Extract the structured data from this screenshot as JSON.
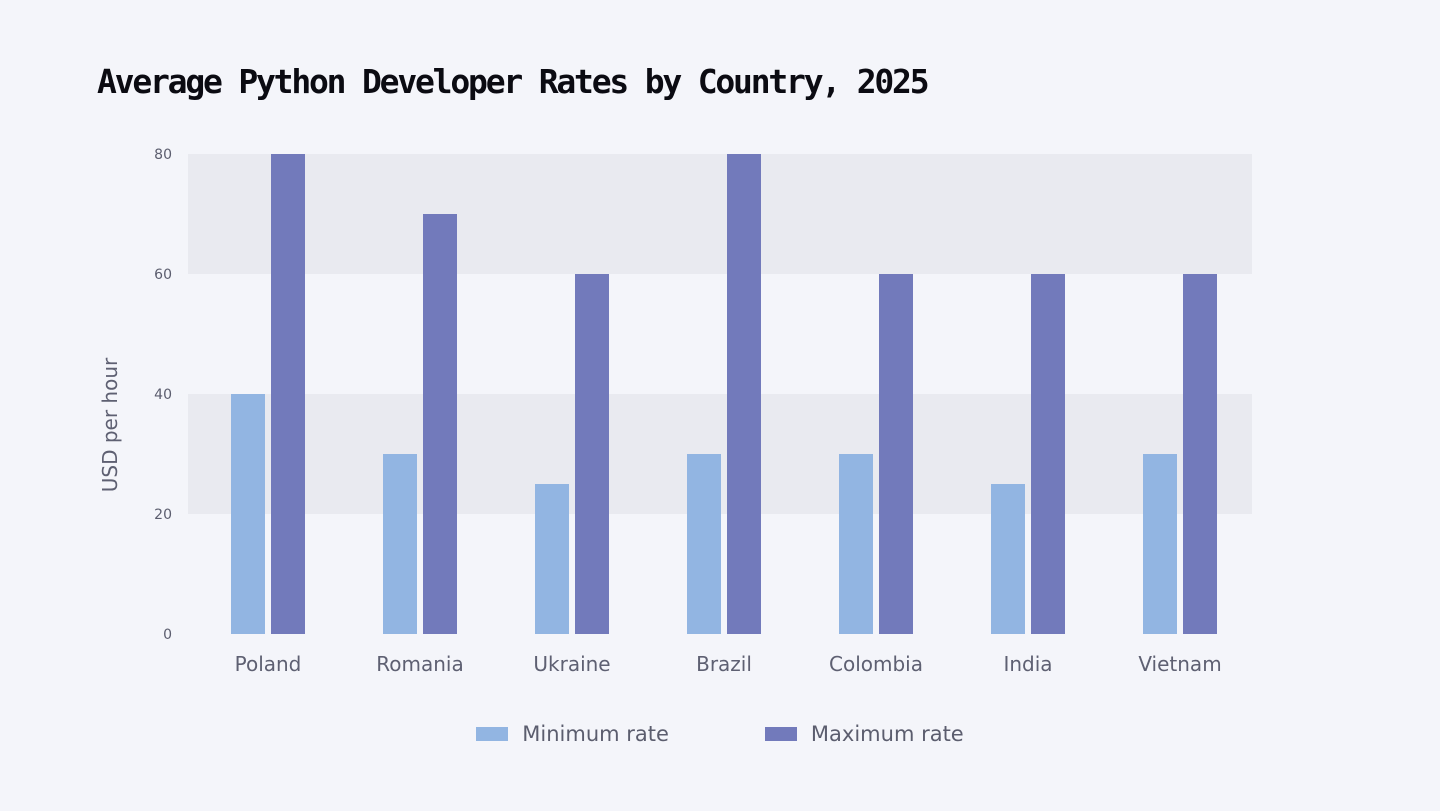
{
  "chart_data": {
    "type": "bar",
    "title": "Average Python Developer Rates by Country, 2025",
    "xlabel": "",
    "ylabel": "USD per hour",
    "categories": [
      "Poland",
      "Romania",
      "Ukraine",
      "Brazil",
      "Colombia",
      "India",
      "Vietnam"
    ],
    "series": [
      {
        "name": "Minimum rate",
        "color": "#92b5e2",
        "values": [
          40,
          30,
          25,
          30,
          30,
          25,
          30
        ]
      },
      {
        "name": "Maximum rate",
        "color": "#727abb",
        "values": [
          80,
          70,
          60,
          80,
          60,
          60,
          60
        ]
      }
    ],
    "ylim": [
      0,
      80
    ],
    "yticks": [
      0,
      20,
      40,
      60,
      80
    ],
    "grid": "alternating horizontal bands",
    "band_color": "#e9eaf0",
    "legend": "bottom-center"
  }
}
